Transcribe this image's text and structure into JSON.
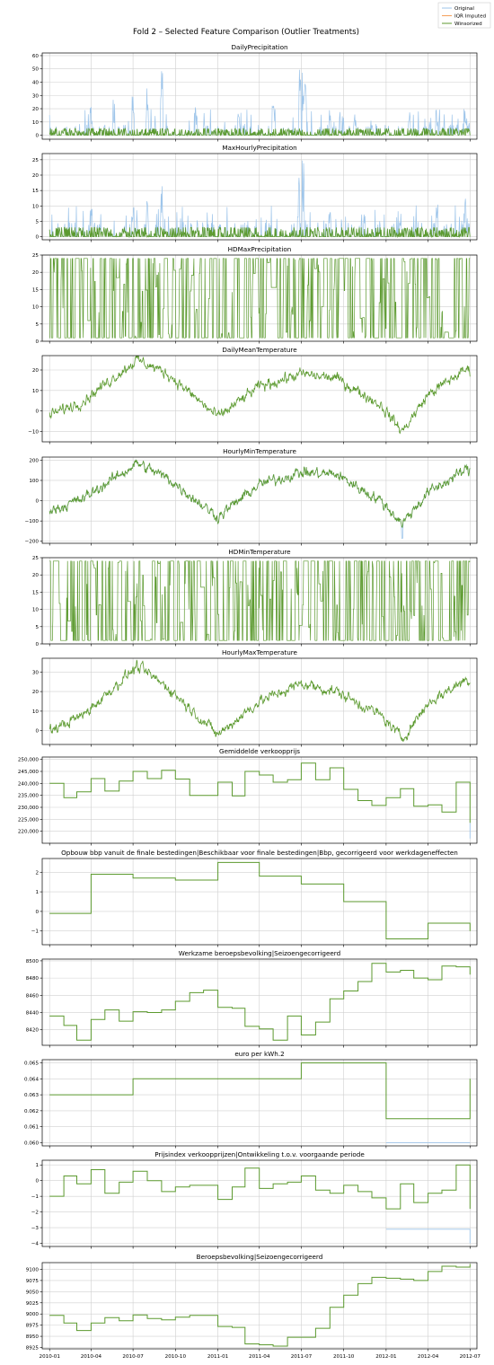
{
  "figure": {
    "title": "Fold 2 – Selected Feature Comparison (Outlier Treatments)",
    "legend": [
      {
        "name": "Original",
        "color": "#9ec5ea"
      },
      {
        "name": "IQR Imputed",
        "color": "#f5a05a"
      },
      {
        "name": "Winsorized",
        "color": "#5c9a2f"
      }
    ],
    "colors": {
      "original": "#9ec5ea",
      "iqr": "#f5a05a",
      "winsorized": "#5c9a2f",
      "grid": "#d0d0d0"
    }
  },
  "chart_data": [
    {
      "type": "line",
      "title": "DailyPrecipitation",
      "ylim": [
        -3,
        62
      ],
      "yticks": [
        0,
        10,
        20,
        30,
        40,
        50,
        60
      ],
      "yticklabels": [
        "0",
        "10",
        "20",
        "30",
        "40",
        "50",
        "60"
      ],
      "grid": true,
      "series": [
        {
          "name": "Original",
          "x": [
            "2010-01-01",
            "2010-04-01",
            "2010-05-20",
            "2010-07-01",
            "2010-08-01",
            "2010-09-01",
            "2010-11-15",
            "2011-02-15",
            "2011-05-01",
            "2011-06-28",
            "2011-07-05",
            "2011-07-10",
            "2011-09-01",
            "2011-10-25",
            "2011-12-01",
            "2012-02-20",
            "2012-04-20",
            "2012-06-20"
          ],
          "y": [
            1,
            22,
            30,
            30,
            38,
            51,
            25,
            20,
            25,
            57,
            59,
            45,
            18,
            22,
            12,
            18,
            22,
            20
          ]
        },
        {
          "name": "Winsorized",
          "x": [
            "2010-01-01",
            "2012-07-01"
          ],
          "y": [
            5,
            5
          ]
        }
      ]
    },
    {
      "type": "line",
      "title": "MaxHourlyPrecipitation",
      "ylim": [
        -1,
        27
      ],
      "yticks": [
        0,
        5,
        10,
        15,
        20,
        25
      ],
      "yticklabels": [
        "0",
        "5",
        "10",
        "15",
        "20",
        "25"
      ],
      "grid": true,
      "series": [
        {
          "name": "Original",
          "x": [
            "2010-04-01",
            "2010-07-01",
            "2010-08-01",
            "2010-09-01",
            "2011-06-25",
            "2011-07-05",
            "2011-09-01",
            "2011-11-15",
            "2012-02-01",
            "2012-04-20",
            "2012-06-20"
          ],
          "y": [
            9,
            11,
            13,
            17,
            21,
            25,
            8,
            9,
            7,
            11,
            13
          ]
        },
        {
          "name": "Winsorized",
          "x": [
            "2010-01-01",
            "2012-07-01"
          ],
          "y": [
            3,
            3
          ]
        }
      ]
    },
    {
      "type": "line",
      "title": "HDMaxPrecipitation",
      "ylim": [
        0,
        25
      ],
      "yticks": [
        0,
        5,
        10,
        15,
        20,
        25
      ],
      "yticklabels": [
        "0",
        "5",
        "10",
        "15",
        "20",
        "25"
      ],
      "grid": true,
      "series": [
        {
          "name": "Winsorized",
          "x": [
            "2010-01-01",
            "2012-07-01"
          ],
          "y": [
            1,
            24
          ]
        }
      ]
    },
    {
      "type": "line",
      "title": "DailyMeanTemperature",
      "ylim": [
        -15,
        27
      ],
      "yticks": [
        -10,
        0,
        10,
        20
      ],
      "yticklabels": [
        "−10",
        "0",
        "10",
        "20"
      ],
      "grid": true,
      "series": [
        {
          "name": "Winsorized",
          "x": [
            "2010-01-01",
            "2010-03-15",
            "2010-07-10",
            "2010-09-15",
            "2011-01-01",
            "2011-04-01",
            "2011-07-01",
            "2011-09-15",
            "2011-12-20",
            "2012-02-05",
            "2012-04-01",
            "2012-06-20"
          ],
          "y": [
            -2,
            5,
            25,
            18,
            -3,
            12,
            18,
            16,
            3,
            -10,
            8,
            20
          ]
        }
      ]
    },
    {
      "type": "line",
      "title": "HourlyMinTemperature",
      "ylim": [
        -210,
        215
      ],
      "yticks": [
        -200,
        -100,
        0,
        100,
        200
      ],
      "yticklabels": [
        "−200",
        "−100",
        "0",
        "100",
        "200"
      ],
      "grid": true,
      "series": [
        {
          "name": "Original",
          "x": [
            "2012-02-05"
          ],
          "y": [
            -185
          ]
        },
        {
          "name": "Winsorized",
          "x": [
            "2010-01-01",
            "2010-03-15",
            "2010-07-10",
            "2010-09-15",
            "2011-01-01",
            "2011-04-01",
            "2011-07-01",
            "2011-09-15",
            "2011-12-20",
            "2012-02-05",
            "2012-04-01",
            "2012-06-20"
          ],
          "y": [
            -50,
            10,
            185,
            110,
            -80,
            80,
            140,
            130,
            0,
            -110,
            40,
            150
          ]
        }
      ]
    },
    {
      "type": "line",
      "title": "HDMinTemperature",
      "ylim": [
        0,
        25
      ],
      "yticks": [
        0,
        5,
        10,
        15,
        20,
        25
      ],
      "yticklabels": [
        "0",
        "5",
        "10",
        "15",
        "20",
        "25"
      ],
      "grid": true,
      "series": [
        {
          "name": "Winsorized",
          "x": [
            "2010-01-01",
            "2012-07-01"
          ],
          "y": [
            1,
            24
          ]
        }
      ]
    },
    {
      "type": "line",
      "title": "HourlyMaxTemperature",
      "ylim": [
        -7,
        37
      ],
      "yticks": [
        0,
        10,
        20,
        30
      ],
      "yticklabels": [
        "0",
        "10",
        "20",
        "30"
      ],
      "grid": true,
      "series": [
        {
          "name": "Winsorized",
          "x": [
            "2010-01-01",
            "2010-03-15",
            "2010-07-10",
            "2010-09-15",
            "2011-01-01",
            "2011-04-01",
            "2011-07-01",
            "2011-09-15",
            "2011-12-20",
            "2012-02-05",
            "2012-04-01",
            "2012-06-20"
          ],
          "y": [
            0,
            8,
            33,
            22,
            -2,
            15,
            24,
            20,
            8,
            -4,
            14,
            26
          ]
        }
      ]
    },
    {
      "type": "line",
      "title": "Gemiddelde verkoopprijs",
      "ylim": [
        215000,
        251000
      ],
      "yticks": [
        220000,
        225000,
        230000,
        235000,
        240000,
        245000,
        250000
      ],
      "yticklabels": [
        "220,000",
        "225,000",
        "230,000",
        "235,000",
        "240,000",
        "245,000",
        "250,000"
      ],
      "grid": true,
      "series": [
        {
          "name": "Original",
          "x": [
            "2012-07-01"
          ],
          "y": [
            217000
          ]
        },
        {
          "name": "Winsorized",
          "x": [
            "2010-01",
            "2010-02",
            "2010-03",
            "2010-04",
            "2010-05",
            "2010-06",
            "2010-07",
            "2010-08",
            "2010-09",
            "2010-10",
            "2010-11",
            "2010-12",
            "2011-01",
            "2011-02",
            "2011-03",
            "2011-04",
            "2011-05",
            "2011-06",
            "2011-07",
            "2011-08",
            "2011-09",
            "2011-10",
            "2011-11",
            "2011-12",
            "2012-01",
            "2012-02",
            "2012-03",
            "2012-04",
            "2012-05",
            "2012-06",
            "2012-07"
          ],
          "y": [
            240000,
            234000,
            236500,
            242000,
            236800,
            241000,
            245000,
            242000,
            245500,
            241800,
            235000,
            235000,
            240500,
            234800,
            245000,
            243500,
            240500,
            241500,
            248500,
            241500,
            246500,
            237500,
            232800,
            230800,
            234000,
            237800,
            230500,
            231000,
            228000,
            240500,
            223500
          ]
        }
      ]
    },
    {
      "type": "line",
      "title": "Opbouw bbp vanuit de finale bestedingen|Beschikbaar voor finale bestedingen|Bbp, gecorrigeerd voor werkdageneffecten",
      "ylim": [
        -1.7,
        2.7
      ],
      "yticks": [
        -1,
        0,
        1,
        2
      ],
      "yticklabels": [
        "−1",
        "0",
        "1",
        "2"
      ],
      "grid": true,
      "series": [
        {
          "name": "Winsorized",
          "x": [
            "2010-01",
            "2010-04",
            "2010-07",
            "2010-10",
            "2011-01",
            "2011-04",
            "2011-07",
            "2011-10",
            "2012-01",
            "2012-04",
            "2012-07"
          ],
          "y": [
            -0.1,
            1.9,
            1.7,
            1.6,
            2.5,
            1.8,
            1.4,
            0.5,
            -1.4,
            -0.6,
            -1.0
          ]
        }
      ]
    },
    {
      "type": "line",
      "title": "Werkzame beroepsbevolking|Seizoengecorrigeerd",
      "ylim": [
        8402,
        8502
      ],
      "yticks": [
        8420,
        8440,
        8460,
        8480,
        8500
      ],
      "yticklabels": [
        "8420",
        "8440",
        "8460",
        "8480",
        "8500"
      ],
      "grid": true,
      "series": [
        {
          "name": "Winsorized",
          "x": [
            "2010-01",
            "2010-02",
            "2010-03",
            "2010-04",
            "2010-05",
            "2010-06",
            "2010-07",
            "2010-08",
            "2010-09",
            "2010-10",
            "2010-11",
            "2010-12",
            "2011-01",
            "2011-02",
            "2011-03",
            "2011-04",
            "2011-05",
            "2011-06",
            "2011-07",
            "2011-08",
            "2011-09",
            "2011-10",
            "2011-11",
            "2011-12",
            "2012-01",
            "2012-02",
            "2012-03",
            "2012-04",
            "2012-05",
            "2012-06",
            "2012-07"
          ],
          "y": [
            8436,
            8425,
            8408,
            8432,
            8443,
            8430,
            8441,
            8440,
            8443,
            8453,
            8463,
            8466,
            8446,
            8445,
            8424,
            8421,
            8408,
            8436,
            8414,
            8429,
            8456,
            8465,
            8476,
            8497,
            8487,
            8489,
            8480,
            8478,
            8494,
            8493,
            8484
          ]
        }
      ]
    },
    {
      "type": "line",
      "title": "euro per kWh.2",
      "ylim": [
        0.0598,
        0.0652
      ],
      "yticks": [
        0.06,
        0.061,
        0.062,
        0.063,
        0.064,
        0.065
      ],
      "yticklabels": [
        "0.060",
        "0.061",
        "0.062",
        "0.063",
        "0.064",
        "0.065"
      ],
      "grid": true,
      "series": [
        {
          "name": "Original",
          "x": [
            "2012-01",
            "2012-07"
          ],
          "y": [
            0.06,
            0.06
          ]
        },
        {
          "name": "Winsorized",
          "x": [
            "2010-01",
            "2010-07",
            "2011-07",
            "2012-01",
            "2012-07"
          ],
          "y": [
            0.063,
            0.064,
            0.065,
            0.0615,
            0.064
          ]
        }
      ]
    },
    {
      "type": "line",
      "title": "Prijsindex verkoopprijzen|Ontwikkeling  t.o.v. voorgaande periode",
      "ylim": [
        -4.2,
        1.3
      ],
      "yticks": [
        -4,
        -3,
        -2,
        -1,
        0,
        1
      ],
      "yticklabels": [
        "−4",
        "−3",
        "−2",
        "−1",
        "0",
        "1"
      ],
      "grid": true,
      "series": [
        {
          "name": "Original",
          "x": [
            "2012-01",
            "2012-07"
          ],
          "y": [
            -3.1,
            -4.0
          ]
        },
        {
          "name": "Winsorized",
          "x": [
            "2010-01",
            "2010-02",
            "2010-03",
            "2010-04",
            "2010-05",
            "2010-06",
            "2010-07",
            "2010-08",
            "2010-09",
            "2010-10",
            "2010-11",
            "2010-12",
            "2011-01",
            "2011-02",
            "2011-03",
            "2011-04",
            "2011-05",
            "2011-06",
            "2011-07",
            "2011-08",
            "2011-09",
            "2011-10",
            "2011-11",
            "2011-12",
            "2012-01",
            "2012-02",
            "2012-03",
            "2012-04",
            "2012-05",
            "2012-06",
            "2012-07"
          ],
          "y": [
            -1.0,
            0.3,
            -0.2,
            0.7,
            -0.8,
            -0.1,
            0.6,
            0.0,
            -0.7,
            -0.4,
            -0.3,
            -0.3,
            -1.2,
            -0.4,
            0.8,
            -0.5,
            -0.2,
            -0.1,
            0.3,
            -0.6,
            -0.8,
            -0.3,
            -0.7,
            -1.1,
            -1.8,
            -0.2,
            -1.4,
            -0.8,
            -0.6,
            1.0,
            -1.8
          ]
        }
      ]
    },
    {
      "type": "line",
      "title": "Beroepsbevolking|Seizoengecorrigeerd",
      "ylim": [
        8922,
        9115
      ],
      "yticks": [
        8925,
        8950,
        8975,
        9000,
        9025,
        9050,
        9075,
        9100
      ],
      "yticklabels": [
        "8925",
        "8950",
        "8975",
        "9000",
        "9025",
        "9050",
        "9075",
        "9100"
      ],
      "grid": true,
      "series": [
        {
          "name": "Winsorized",
          "x": [
            "2010-01",
            "2010-02",
            "2010-03",
            "2010-04",
            "2010-05",
            "2010-06",
            "2010-07",
            "2010-08",
            "2010-09",
            "2010-10",
            "2010-11",
            "2010-12",
            "2011-01",
            "2011-02",
            "2011-03",
            "2011-04",
            "2011-05",
            "2011-06",
            "2011-07",
            "2011-08",
            "2011-09",
            "2011-10",
            "2011-11",
            "2011-12",
            "2012-01",
            "2012-02",
            "2012-03",
            "2012-04",
            "2012-05",
            "2012-06",
            "2012-07"
          ],
          "y": [
            8997,
            8980,
            8963,
            8980,
            8992,
            8985,
            8998,
            8990,
            8987,
            8993,
            8997,
            8997,
            8972,
            8970,
            8933,
            8931,
            8928,
            8948,
            8948,
            8968,
            9015,
            9042,
            9068,
            9082,
            9080,
            9078,
            9075,
            9095,
            9107,
            9105,
            9112
          ]
        }
      ]
    }
  ],
  "xaxis": {
    "ticks": [
      "2010-01",
      "2010-04",
      "2010-07",
      "2010-10",
      "2011-01",
      "2011-04",
      "2011-07",
      "2011-10",
      "2012-01",
      "2012-04",
      "2012-07"
    ],
    "labels": [
      "2010-01",
      "2010-04",
      "2010-07",
      "2010-10",
      "2011-01",
      "2011-04",
      "2011-07",
      "2011-10",
      "2012-01",
      "2012-04",
      "2012-07"
    ]
  }
}
